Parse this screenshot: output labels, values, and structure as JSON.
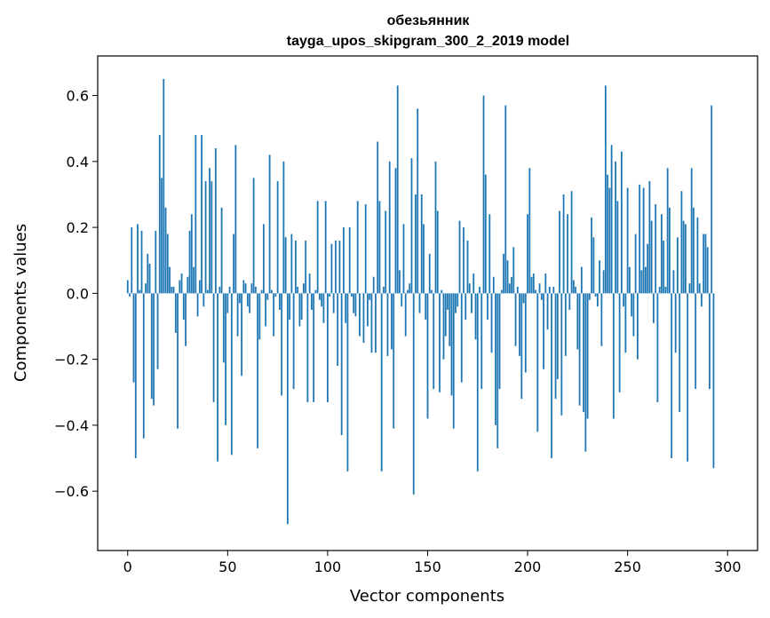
{
  "chart_data": {
    "type": "bar",
    "title": "обезьянник",
    "subtitle": "tayga_upos_skipgram_300_2_2019 model",
    "xlabel": "Vector components",
    "ylabel": "Components values",
    "xlim": [
      -15,
      315
    ],
    "ylim": [
      -0.78,
      0.72
    ],
    "xticks": [
      0,
      50,
      100,
      150,
      200,
      250,
      300
    ],
    "yticks": [
      -0.6,
      -0.4,
      -0.2,
      0.0,
      0.2,
      0.4,
      0.6
    ],
    "xtick_labels": [
      "0",
      "50",
      "100",
      "150",
      "200",
      "250",
      "300"
    ],
    "ytick_labels": [
      "−0.6",
      "−0.4",
      "−0.2",
      "0.0",
      "0.2",
      "0.4",
      "0.6"
    ],
    "grid": false,
    "bar_color": "#1f77b4",
    "series": [
      {
        "values": [
          0.04,
          -0.01,
          0.2,
          -0.27,
          -0.5,
          0.21,
          0.01,
          0.19,
          -0.44,
          0.03,
          0.12,
          0.09,
          -0.32,
          -0.34,
          0.19,
          -0.23,
          0.48,
          0.35,
          0.65,
          0.26,
          0.18,
          0.08,
          0.02,
          0.02,
          -0.12,
          -0.41,
          0.04,
          0.06,
          -0.08,
          -0.16,
          0.05,
          0.19,
          0.24,
          0.08,
          0.48,
          -0.07,
          0.04,
          0.48,
          -0.04,
          0.34,
          0.01,
          0.38,
          0.34,
          -0.33,
          0.44,
          -0.51,
          0.02,
          0.26,
          -0.21,
          -0.4,
          -0.06,
          0.02,
          -0.49,
          0.18,
          0.45,
          -0.13,
          -0.03,
          -0.25,
          0.04,
          0.03,
          -0.04,
          -0.06,
          0.03,
          0.35,
          0.02,
          -0.47,
          -0.14,
          0.01,
          0.21,
          -0.1,
          -0.02,
          0.42,
          0.01,
          -0.13,
          -0.01,
          0.34,
          -0.05,
          -0.31,
          0.4,
          0.17,
          -0.7,
          -0.08,
          0.18,
          -0.29,
          0.16,
          0.02,
          -0.1,
          -0.08,
          0.03,
          0.16,
          -0.33,
          0.06,
          -0.05,
          -0.33,
          0.01,
          0.28,
          -0.02,
          -0.04,
          -0.09,
          0.28,
          -0.33,
          -0.01,
          0.15,
          -0.06,
          0.16,
          -0.22,
          0.16,
          -0.43,
          0.2,
          -0.09,
          -0.54,
          0.2,
          -0.01,
          -0.06,
          -0.07,
          0.28,
          -0.13,
          0.0,
          -0.15,
          0.27,
          -0.1,
          -0.02,
          -0.18,
          0.05,
          -0.18,
          0.46,
          0.28,
          -0.54,
          0.02,
          0.25,
          -0.19,
          0.4,
          -0.17,
          -0.41,
          0.38,
          0.63,
          0.07,
          -0.04,
          0.21,
          -0.13,
          0.01,
          0.03,
          0.41,
          -0.61,
          0.3,
          0.56,
          -0.06,
          0.3,
          0.21,
          -0.08,
          -0.38,
          0.12,
          0.01,
          -0.29,
          0.4,
          0.25,
          -0.3,
          0.01,
          -0.2,
          -0.13,
          -0.05,
          -0.16,
          -0.31,
          -0.41,
          -0.06,
          -0.04,
          0.22,
          -0.27,
          0.2,
          -0.08,
          0.16,
          0.03,
          -0.06,
          0.06,
          -0.14,
          -0.54,
          0.02,
          -0.29,
          0.6,
          0.36,
          -0.08,
          0.24,
          -0.18,
          0.05,
          -0.4,
          -0.47,
          -0.29,
          0.01,
          0.12,
          0.57,
          0.1,
          0.03,
          0.05,
          0.14,
          -0.16,
          0.02,
          -0.19,
          -0.32,
          -0.03,
          -0.24,
          0.24,
          0.38,
          0.05,
          0.06,
          0.01,
          -0.42,
          0.03,
          -0.02,
          -0.23,
          0.06,
          -0.11,
          0.02,
          -0.5,
          0.02,
          -0.32,
          -0.26,
          0.25,
          -0.37,
          0.3,
          -0.19,
          0.24,
          -0.05,
          0.31,
          0.04,
          0.02,
          -0.17,
          -0.34,
          0.08,
          -0.36,
          -0.48,
          -0.38,
          -0.02,
          0.23,
          0.17,
          -0.01,
          -0.04,
          0.1,
          -0.16,
          0.07,
          0.63,
          0.36,
          0.32,
          0.45,
          -0.38,
          0.4,
          0.28,
          -0.3,
          0.43,
          -0.04,
          -0.18,
          0.32,
          0.08,
          -0.07,
          -0.13,
          0.18,
          -0.2,
          0.33,
          0.07,
          0.32,
          0.08,
          0.15,
          0.34,
          0.22,
          -0.09,
          0.27,
          -0.33,
          0.02,
          0.24,
          0.16,
          0.02,
          0.38,
          0.26,
          -0.5,
          0.07,
          -0.18,
          0.17,
          -0.36,
          0.31,
          0.22,
          0.21,
          -0.51,
          0.03,
          0.38,
          0.26,
          -0.29,
          0.23,
          0.03,
          -0.04,
          0.18,
          0.18,
          0.14,
          -0.29,
          0.57,
          -0.53
        ]
      }
    ]
  }
}
